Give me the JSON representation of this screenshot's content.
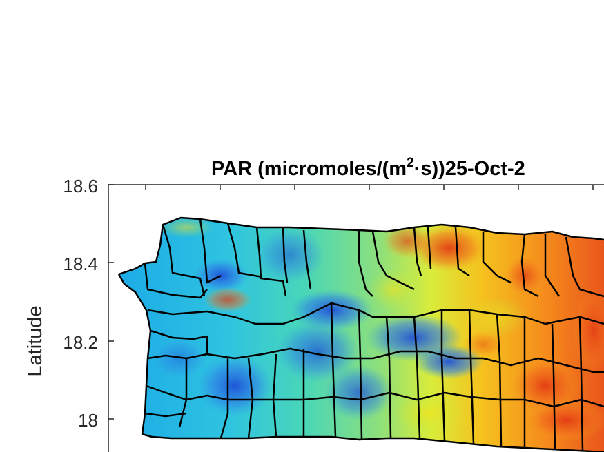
{
  "figure": {
    "title_prefix": "PAR (micromoles/(m",
    "title_superscript": "2",
    "title_suffix": "·s))25-Oct-2",
    "ylabel": "Latitude",
    "ytick_labels": [
      "18.6",
      "18.4",
      "18.2",
      "18"
    ],
    "colormap": "jet",
    "region": "Puerto Rico municipalities"
  },
  "chart_data": {
    "type": "heatmap",
    "title": "PAR (micromoles/(m2·s))25-Oct-2",
    "ylabel": "Latitude",
    "yticks": [
      18.6,
      18.4,
      18.2,
      18.0
    ],
    "ylim": [
      17.9,
      18.6
    ],
    "colormap": "jet",
    "boundary_color": "#000000"
  }
}
